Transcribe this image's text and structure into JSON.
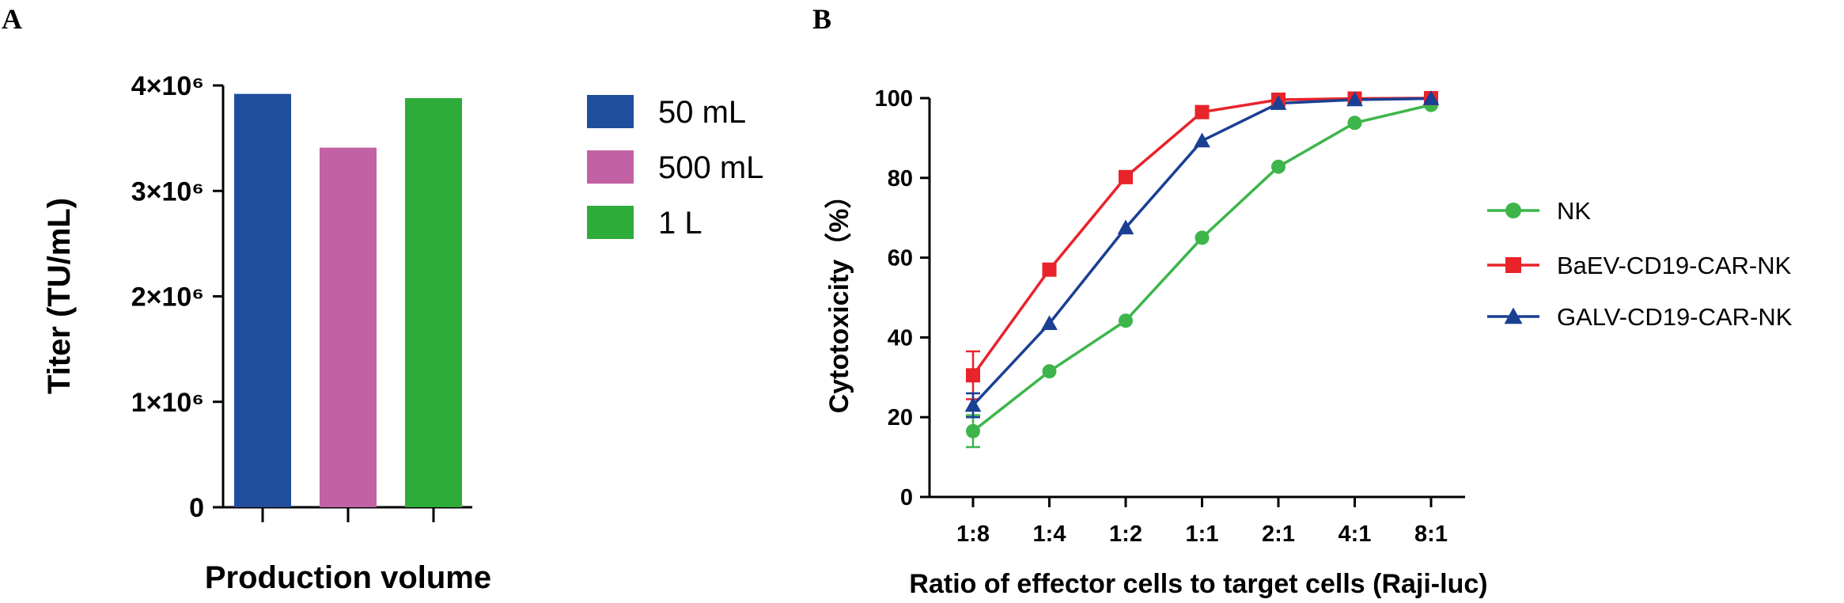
{
  "chart_data": [
    {
      "panel": "A",
      "type": "bar",
      "title": "",
      "xlabel": "Production volume",
      "ylabel": "Titer (TU/mL)",
      "ylim": [
        0,
        4000000
      ],
      "y_ticks": [
        {
          "value": 0,
          "label": "0"
        },
        {
          "value": 1000000,
          "label": "1×10⁶"
        },
        {
          "value": 2000000,
          "label": "2×10⁶"
        },
        {
          "value": 3000000,
          "label": "3×10⁶"
        },
        {
          "value": 4000000,
          "label": "4×10⁶"
        }
      ],
      "categories": [
        "50 mL",
        "500 mL",
        "1 L"
      ],
      "values": [
        3920000,
        3410000,
        3880000
      ],
      "colors": [
        "#1f4e9c",
        "#c262a4",
        "#2eac3a"
      ],
      "legend_position": "right"
    },
    {
      "panel": "B",
      "type": "line",
      "title": "",
      "xlabel": "Ratio of effector cells to target cells (Raji-luc)",
      "ylabel": "Cytotoxicity（%）",
      "ylim": [
        0,
        100
      ],
      "y_ticks": [
        0,
        20,
        40,
        60,
        80,
        100
      ],
      "categories": [
        "1:8",
        "1:4",
        "1:2",
        "1:1",
        "2:1",
        "4:1",
        "8:1"
      ],
      "legend_position": "right",
      "series": [
        {
          "name": "NK",
          "color": "#3db54a",
          "marker": "circle",
          "values": [
            16.5,
            31.5,
            44.2,
            65,
            82.8,
            93.8,
            98.3
          ],
          "errors": [
            4,
            0,
            0,
            0,
            0,
            0,
            0
          ]
        },
        {
          "name": "BaEV-CD19-CAR-NK",
          "color": "#e8232a",
          "marker": "square",
          "values": [
            30.5,
            57,
            80.2,
            96.5,
            99.6,
            99.9,
            100
          ],
          "errors": [
            6,
            0,
            0,
            0,
            0,
            0,
            0
          ]
        },
        {
          "name": "GALV-CD19-CAR-NK",
          "color": "#1a3f93",
          "marker": "triangle",
          "values": [
            23,
            43.5,
            67.5,
            89.3,
            98.7,
            99.6,
            99.9
          ],
          "errors": [
            3,
            0,
            0,
            0,
            0,
            0,
            0
          ]
        }
      ]
    }
  ],
  "panels": {
    "a_label": "A",
    "b_label": "B"
  }
}
